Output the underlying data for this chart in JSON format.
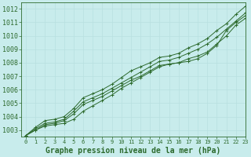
{
  "title": "Graphe pression niveau de la mer (hPa)",
  "xlim": [
    -0.5,
    23
  ],
  "ylim": [
    1002.5,
    1012.5
  ],
  "yticks": [
    1003,
    1004,
    1005,
    1006,
    1007,
    1008,
    1009,
    1010,
    1011,
    1012
  ],
  "xticks": [
    0,
    1,
    2,
    3,
    4,
    5,
    6,
    7,
    8,
    9,
    10,
    11,
    12,
    13,
    14,
    15,
    16,
    17,
    18,
    19,
    20,
    21,
    22,
    23
  ],
  "bg_color": "#c8ecec",
  "grid_color": "#d8f0f0",
  "line_color": "#2d6a2d",
  "lines": [
    [
      1002.6,
      1003.0,
      1003.4,
      1003.5,
      1003.7,
      1004.2,
      1004.9,
      1005.2,
      1005.5,
      1005.9,
      1006.3,
      1006.7,
      1007.0,
      1007.4,
      1007.8,
      1007.9,
      1008.0,
      1008.3,
      1008.5,
      1008.8,
      1009.4,
      1010.0,
      1010.8,
      1011.3
    ],
    [
      1002.6,
      1003.0,
      1003.3,
      1003.4,
      1003.5,
      1003.8,
      1004.4,
      1004.8,
      1005.2,
      1005.6,
      1006.1,
      1006.5,
      1006.9,
      1007.3,
      1007.7,
      1007.9,
      1008.0,
      1008.1,
      1008.3,
      1008.7,
      1009.3,
      1010.4,
      1011.0,
      1011.5
    ],
    [
      1002.6,
      1003.1,
      1003.5,
      1003.6,
      1003.8,
      1004.4,
      1005.1,
      1005.4,
      1005.7,
      1006.1,
      1006.5,
      1006.9,
      1007.3,
      1007.7,
      1008.1,
      1008.2,
      1008.4,
      1008.7,
      1009.0,
      1009.4,
      1009.9,
      1010.5,
      1011.1,
      1011.7
    ],
    [
      1002.6,
      1003.2,
      1003.7,
      1003.8,
      1004.0,
      1004.6,
      1005.4,
      1005.7,
      1006.0,
      1006.4,
      1006.9,
      1007.4,
      1007.7,
      1008.0,
      1008.4,
      1008.5,
      1008.7,
      1009.1,
      1009.4,
      1009.8,
      1010.4,
      1010.9,
      1011.6,
      1012.2
    ]
  ],
  "title_fontsize": 7,
  "ytick_fontsize": 6,
  "xtick_fontsize": 5,
  "title_color": "#2d6a2d",
  "tick_color": "#2d6a2d",
  "fig_width": 3.2,
  "fig_height": 2.0,
  "dpi": 100
}
